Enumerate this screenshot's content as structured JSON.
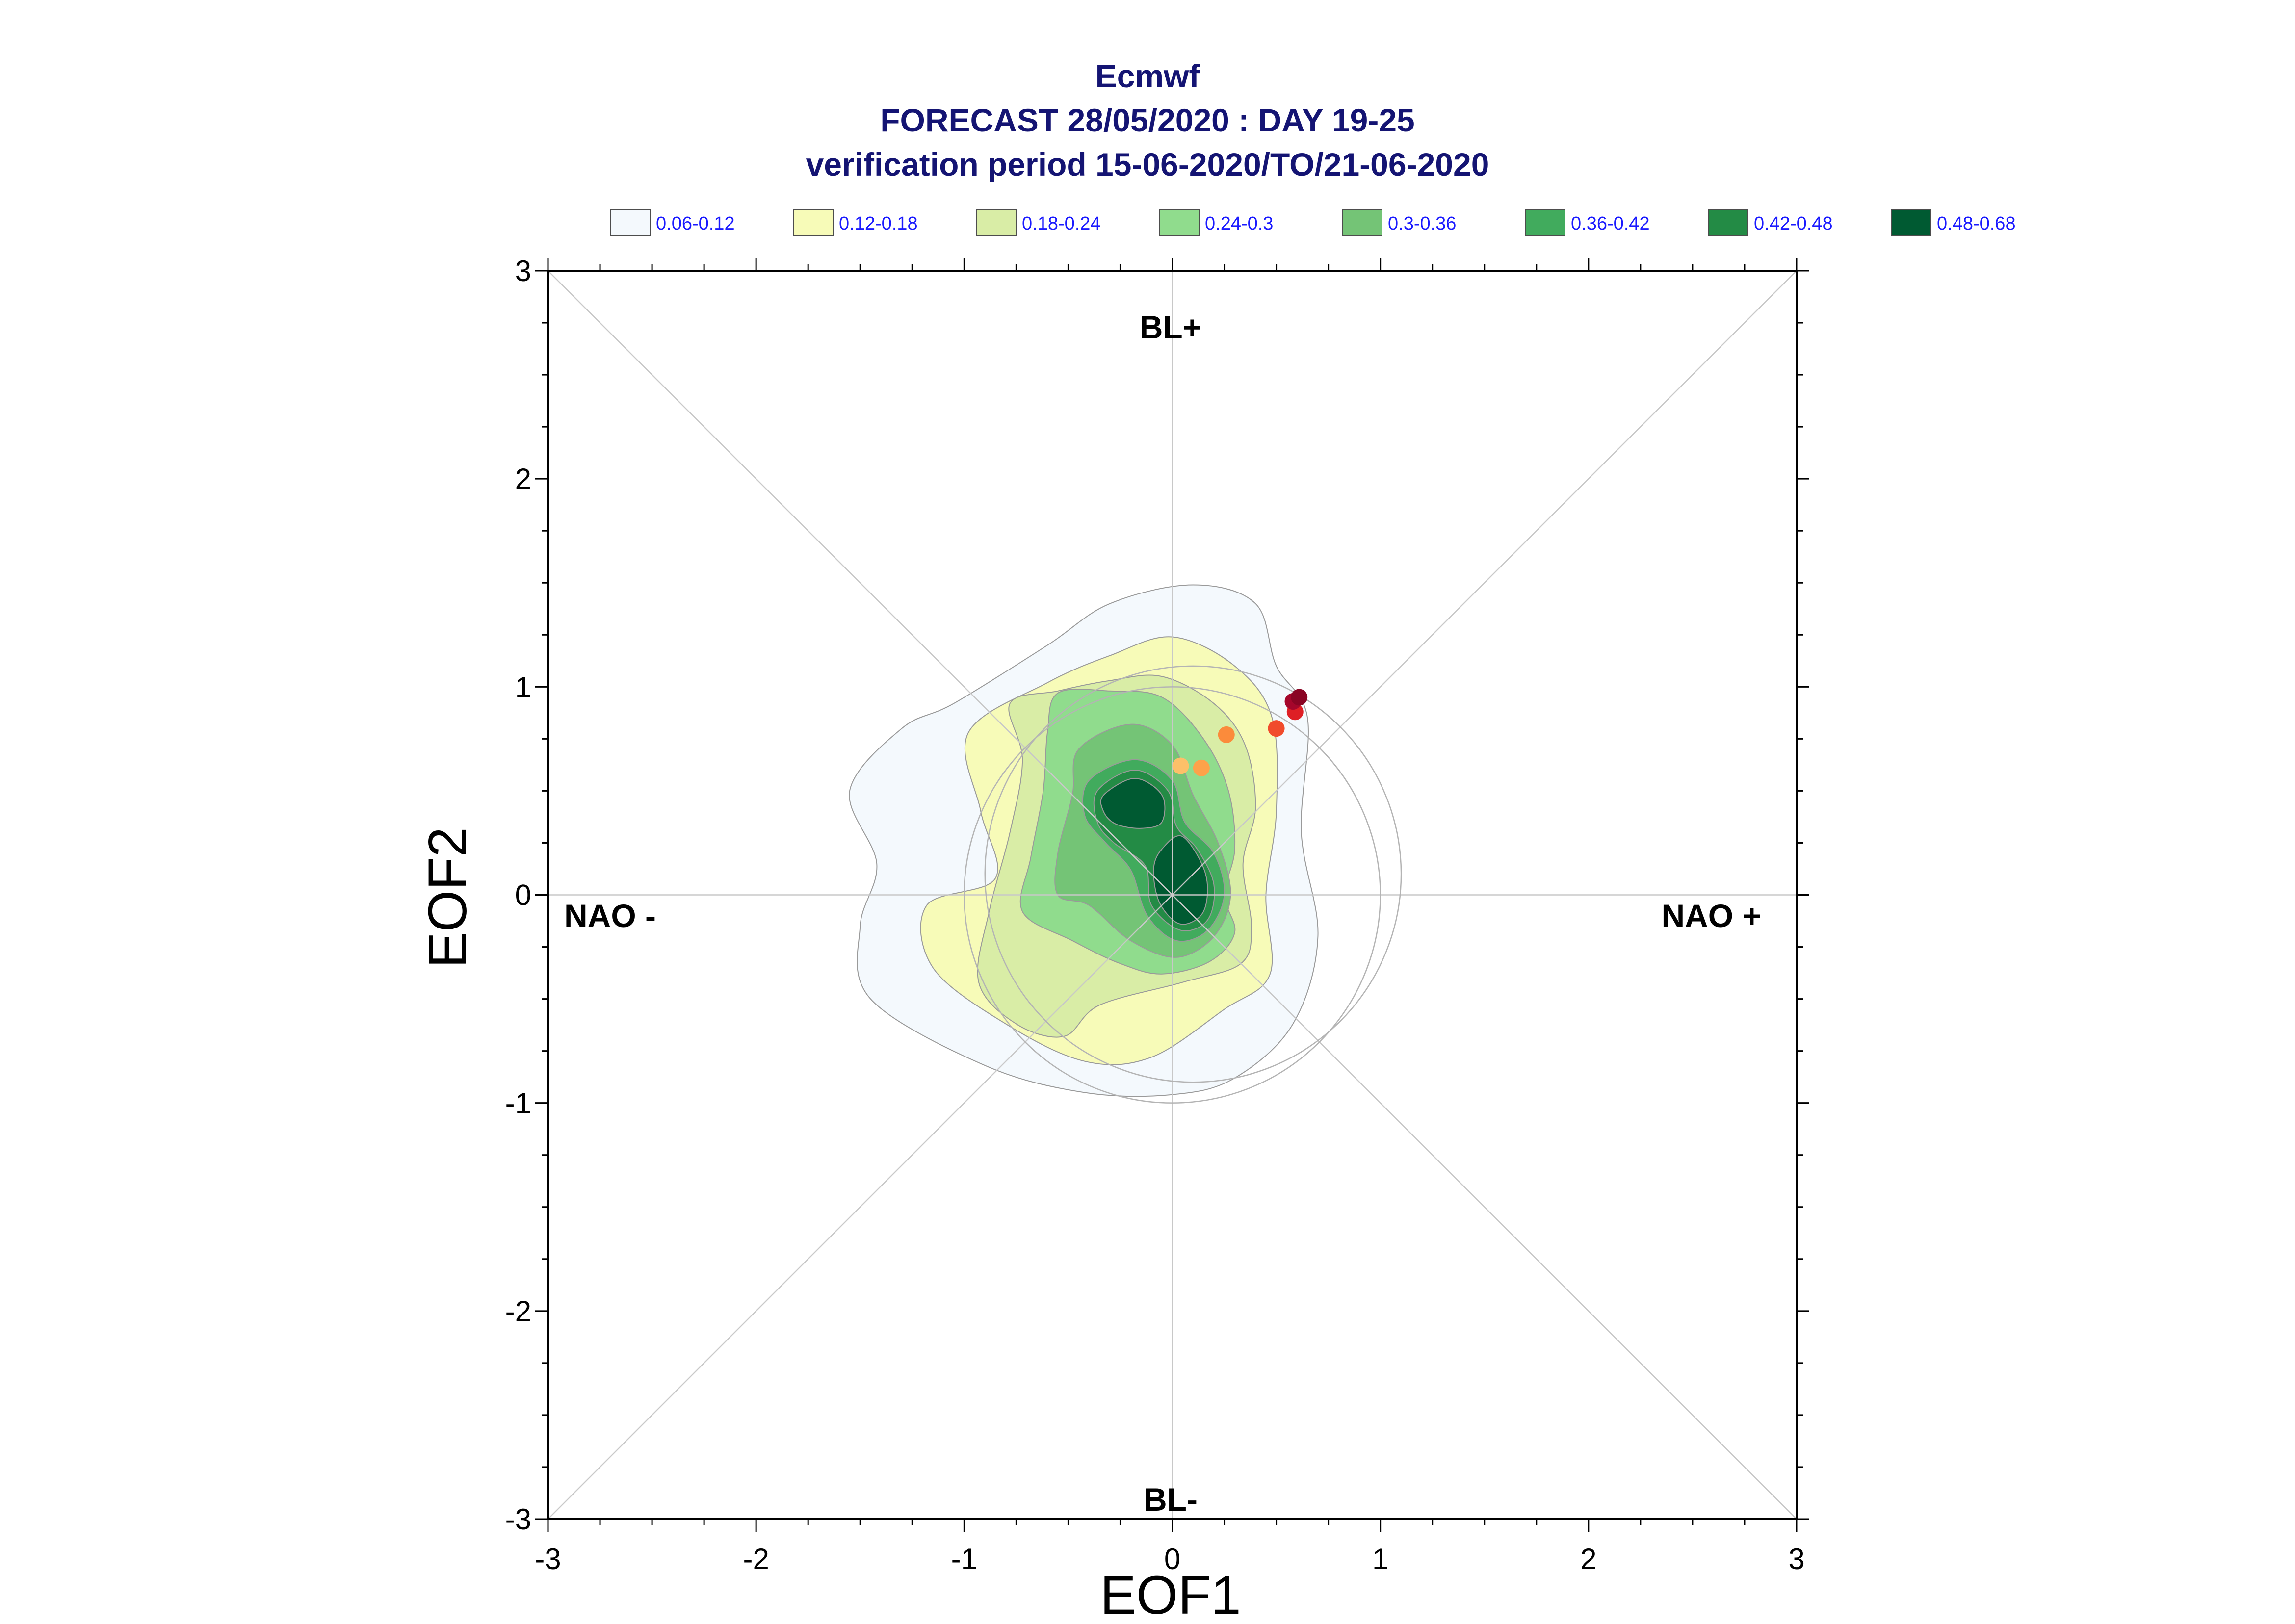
{
  "chart_data": {
    "type": "contour-scatter",
    "title_lines": [
      "Ecmwf",
      "FORECAST 28/05/2020 : DAY 19-25",
      "verification period 15-06-2020/TO/21-06-2020"
    ],
    "xlabel": "EOF1",
    "ylabel": "EOF2",
    "xlim": [
      -3,
      3
    ],
    "ylim": [
      -3,
      3
    ],
    "xticks": [
      -3,
      -2,
      -1,
      0,
      1,
      2,
      3
    ],
    "yticks": [
      -3,
      -2,
      -1,
      0,
      1,
      2,
      3
    ],
    "tick_labels": [
      "-3",
      "-2",
      "-1",
      "0",
      "1",
      "2",
      "3"
    ],
    "grid": false,
    "regime_labels": {
      "top": "BL+",
      "bottom": "BL-",
      "left": "NAO -",
      "right": "NAO +"
    },
    "legend": [
      {
        "label": "0.06-0.12",
        "color": "#f4f9fd"
      },
      {
        "label": "0.12-0.18",
        "color": "#f7fbb8"
      },
      {
        "label": "0.18-0.24",
        "color": "#d9eda6"
      },
      {
        "label": "0.24-0.3",
        "color": "#90dc8d"
      },
      {
        "label": "0.3-0.36",
        "color": "#74c476"
      },
      {
        "label": "0.36-0.42",
        "color": "#41ab5d"
      },
      {
        "label": "0.42-0.48",
        "color": "#238b45"
      },
      {
        "label": "0.48-0.68",
        "color": "#005a32"
      }
    ],
    "reference_circles": [
      {
        "cx": 0,
        "cy": 0,
        "r": 1.0
      },
      {
        "cx": 0.1,
        "cy": 0.1,
        "r": 1.0
      }
    ],
    "density_contours": [
      {
        "level": 0,
        "points": [
          [
            -0.6,
            1.2
          ],
          [
            -0.3,
            1.4
          ],
          [
            0.1,
            1.49
          ],
          [
            0.4,
            1.4
          ],
          [
            0.5,
            1.1
          ],
          [
            0.65,
            0.85
          ],
          [
            0.62,
            0.3
          ],
          [
            0.7,
            -0.2
          ],
          [
            0.58,
            -0.62
          ],
          [
            0.3,
            -0.88
          ],
          [
            0.0,
            -0.96
          ],
          [
            -0.42,
            -0.95
          ],
          [
            -0.9,
            -0.82
          ],
          [
            -1.45,
            -0.5
          ],
          [
            -1.5,
            -0.15
          ],
          [
            -1.42,
            0.15
          ],
          [
            -1.55,
            0.5
          ],
          [
            -1.3,
            0.8
          ],
          [
            -1.05,
            0.92
          ]
        ]
      },
      {
        "level": 1,
        "points": [
          [
            -0.6,
            1.02
          ],
          [
            -0.3,
            1.15
          ],
          [
            0.0,
            1.24
          ],
          [
            0.3,
            1.1
          ],
          [
            0.48,
            0.85
          ],
          [
            0.5,
            0.4
          ],
          [
            0.45,
            0.0
          ],
          [
            0.47,
            -0.38
          ],
          [
            0.25,
            -0.55
          ],
          [
            -0.1,
            -0.78
          ],
          [
            -0.42,
            -0.8
          ],
          [
            -0.8,
            -0.62
          ],
          [
            -1.15,
            -0.35
          ],
          [
            -1.18,
            -0.05
          ],
          [
            -0.85,
            0.08
          ],
          [
            -0.92,
            0.4
          ],
          [
            -0.98,
            0.78
          ]
        ]
      },
      {
        "level": 2,
        "points": [
          [
            -0.55,
            0.98
          ],
          [
            -0.3,
            1.03
          ],
          [
            -0.05,
            1.05
          ],
          [
            0.2,
            0.92
          ],
          [
            0.35,
            0.72
          ],
          [
            0.4,
            0.42
          ],
          [
            0.34,
            0.15
          ],
          [
            0.38,
            -0.15
          ],
          [
            0.33,
            -0.33
          ],
          [
            0.05,
            -0.42
          ],
          [
            -0.35,
            -0.53
          ],
          [
            -0.52,
            -0.68
          ],
          [
            -0.75,
            -0.62
          ],
          [
            -0.93,
            -0.42
          ],
          [
            -0.88,
            -0.08
          ],
          [
            -0.78,
            0.3
          ],
          [
            -0.72,
            0.65
          ],
          [
            -0.78,
            0.92
          ]
        ]
      },
      {
        "level": 3,
        "points": [
          [
            -0.55,
            0.97
          ],
          [
            -0.3,
            0.98
          ],
          [
            -0.05,
            0.95
          ],
          [
            0.15,
            0.75
          ],
          [
            0.27,
            0.5
          ],
          [
            0.3,
            0.22
          ],
          [
            0.25,
            0.0
          ],
          [
            0.3,
            -0.18
          ],
          [
            0.18,
            -0.32
          ],
          [
            -0.05,
            -0.38
          ],
          [
            -0.25,
            -0.33
          ],
          [
            -0.48,
            -0.22
          ],
          [
            -0.72,
            -0.08
          ],
          [
            -0.68,
            0.18
          ],
          [
            -0.62,
            0.5
          ],
          [
            -0.6,
            0.78
          ]
        ]
      },
      {
        "level": 4,
        "points": [
          [
            -0.45,
            0.7
          ],
          [
            -0.2,
            0.82
          ],
          [
            0.0,
            0.72
          ],
          [
            0.1,
            0.48
          ],
          [
            0.22,
            0.25
          ],
          [
            0.28,
            0.0
          ],
          [
            0.2,
            -0.2
          ],
          [
            0.02,
            -0.3
          ],
          [
            -0.2,
            -0.22
          ],
          [
            -0.4,
            -0.05
          ],
          [
            -0.55,
            0.0
          ],
          [
            -0.55,
            0.2
          ],
          [
            -0.48,
            0.48
          ]
        ]
      },
      {
        "level": 5,
        "points": [
          [
            -0.4,
            0.55
          ],
          [
            -0.18,
            0.65
          ],
          [
            0.0,
            0.55
          ],
          [
            0.06,
            0.35
          ],
          [
            0.2,
            0.2
          ],
          [
            0.25,
            0.0
          ],
          [
            0.17,
            -0.17
          ],
          [
            0.02,
            -0.22
          ],
          [
            -0.12,
            -0.1
          ],
          [
            -0.2,
            0.12
          ],
          [
            -0.32,
            0.25
          ],
          [
            -0.42,
            0.38
          ]
        ]
      },
      {
        "level": 6,
        "points": [
          [
            -0.36,
            0.5
          ],
          [
            -0.18,
            0.6
          ],
          [
            -0.02,
            0.5
          ],
          [
            0.02,
            0.33
          ],
          [
            0.12,
            0.22
          ],
          [
            0.2,
            0.05
          ],
          [
            0.17,
            -0.12
          ],
          [
            0.04,
            -0.17
          ],
          [
            -0.1,
            -0.05
          ],
          [
            -0.13,
            0.14
          ],
          [
            -0.28,
            0.25
          ],
          [
            -0.36,
            0.35
          ]
        ]
      },
      {
        "level": 7,
        "shapes": [
          {
            "points": [
              [
                -0.33,
                0.48
              ],
              [
                -0.18,
                0.56
              ],
              [
                -0.05,
                0.48
              ],
              [
                -0.05,
                0.35
              ],
              [
                -0.15,
                0.32
              ],
              [
                -0.27,
                0.34
              ],
              [
                -0.33,
                0.4
              ]
            ]
          },
          {
            "points": [
              [
                -0.05,
                0.22
              ],
              [
                0.05,
                0.28
              ],
              [
                0.16,
                0.1
              ],
              [
                0.15,
                -0.08
              ],
              [
                0.04,
                -0.14
              ],
              [
                -0.06,
                -0.04
              ],
              [
                -0.09,
                0.12
              ]
            ]
          }
        ]
      }
    ],
    "scatter_points": [
      {
        "x": 0.04,
        "y": 0.62,
        "color": "#fdc069"
      },
      {
        "x": 0.14,
        "y": 0.61,
        "color": "#fda24a"
      },
      {
        "x": 0.26,
        "y": 0.77,
        "color": "#fb8b3b"
      },
      {
        "x": 0.5,
        "y": 0.8,
        "color": "#f14b2c"
      },
      {
        "x": 0.59,
        "y": 0.88,
        "color": "#de1f25"
      },
      {
        "x": 0.58,
        "y": 0.93,
        "color": "#a5062b"
      },
      {
        "x": 0.61,
        "y": 0.95,
        "color": "#8a0424"
      }
    ]
  }
}
